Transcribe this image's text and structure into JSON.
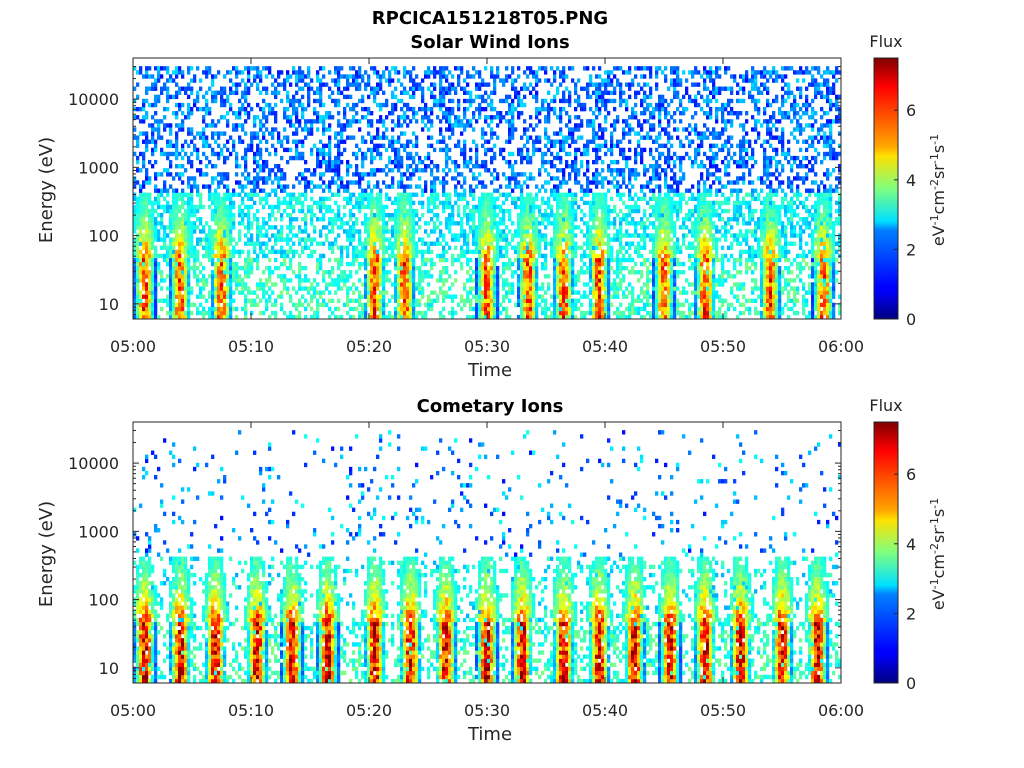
{
  "figure": {
    "title": "RPCICA151218T05.PNG"
  },
  "chart_data": [
    {
      "type": "heatmap",
      "title": "Solar Wind Ions",
      "xlabel": "Time",
      "ylabel": "Energy (eV)",
      "x_ticks": [
        "05:00",
        "05:10",
        "05:20",
        "05:30",
        "05:40",
        "05:50",
        "06:00"
      ],
      "xlim": [
        "05:00",
        "06:00"
      ],
      "y_scale": "log",
      "y_ticks": [
        10,
        100,
        1000,
        10000
      ],
      "y_tick_labels": [
        "10",
        "100",
        "1000",
        "10000"
      ],
      "ylim": [
        6,
        40000
      ],
      "colorbar": {
        "title": "Flux",
        "label": "eV-1cm-2sr-1s-1",
        "range": [
          0,
          7.5
        ],
        "ticks": [
          "0",
          "2",
          "4",
          "6"
        ],
        "colormap": "jet"
      },
      "low_energy_bursts_time_min": [
        1,
        4,
        7.5,
        20.5,
        23,
        30,
        33.5,
        36.5,
        39.5,
        45,
        48.5,
        54,
        58.5
      ],
      "low_energy_peak_flux": 6.5,
      "low_energy_band_eV": [
        6,
        45
      ],
      "background_flux_range": [
        1,
        3
      ],
      "background_energy_band_eV": [
        45,
        30000
      ]
    },
    {
      "type": "heatmap",
      "title": "Cometary Ions",
      "xlabel": "Time",
      "ylabel": "Energy (eV)",
      "x_ticks": [
        "05:00",
        "05:10",
        "05:20",
        "05:30",
        "05:40",
        "05:50",
        "06:00"
      ],
      "xlim": [
        "05:00",
        "06:00"
      ],
      "y_scale": "log",
      "y_ticks": [
        10,
        100,
        1000,
        10000
      ],
      "y_tick_labels": [
        "10",
        "100",
        "1000",
        "10000"
      ],
      "ylim": [
        6,
        40000
      ],
      "colorbar": {
        "title": "Flux",
        "label": "eV-1cm-2sr-1s-1",
        "range": [
          0,
          7.5
        ],
        "ticks": [
          "0",
          "2",
          "4",
          "6"
        ],
        "colormap": "jet"
      },
      "low_energy_bursts_time_min": [
        1,
        4,
        7,
        10.5,
        13.5,
        16.5,
        20.5,
        23.5,
        26.5,
        30,
        33,
        36.5,
        39.5,
        42.5,
        45.5,
        48.5,
        51.5,
        55,
        58
      ],
      "low_energy_peak_flux": 7.2,
      "low_energy_band_eV": [
        6,
        45
      ],
      "background_flux_range": [
        1,
        3
      ],
      "background_energy_band_eV": [
        45,
        30000
      ]
    }
  ]
}
